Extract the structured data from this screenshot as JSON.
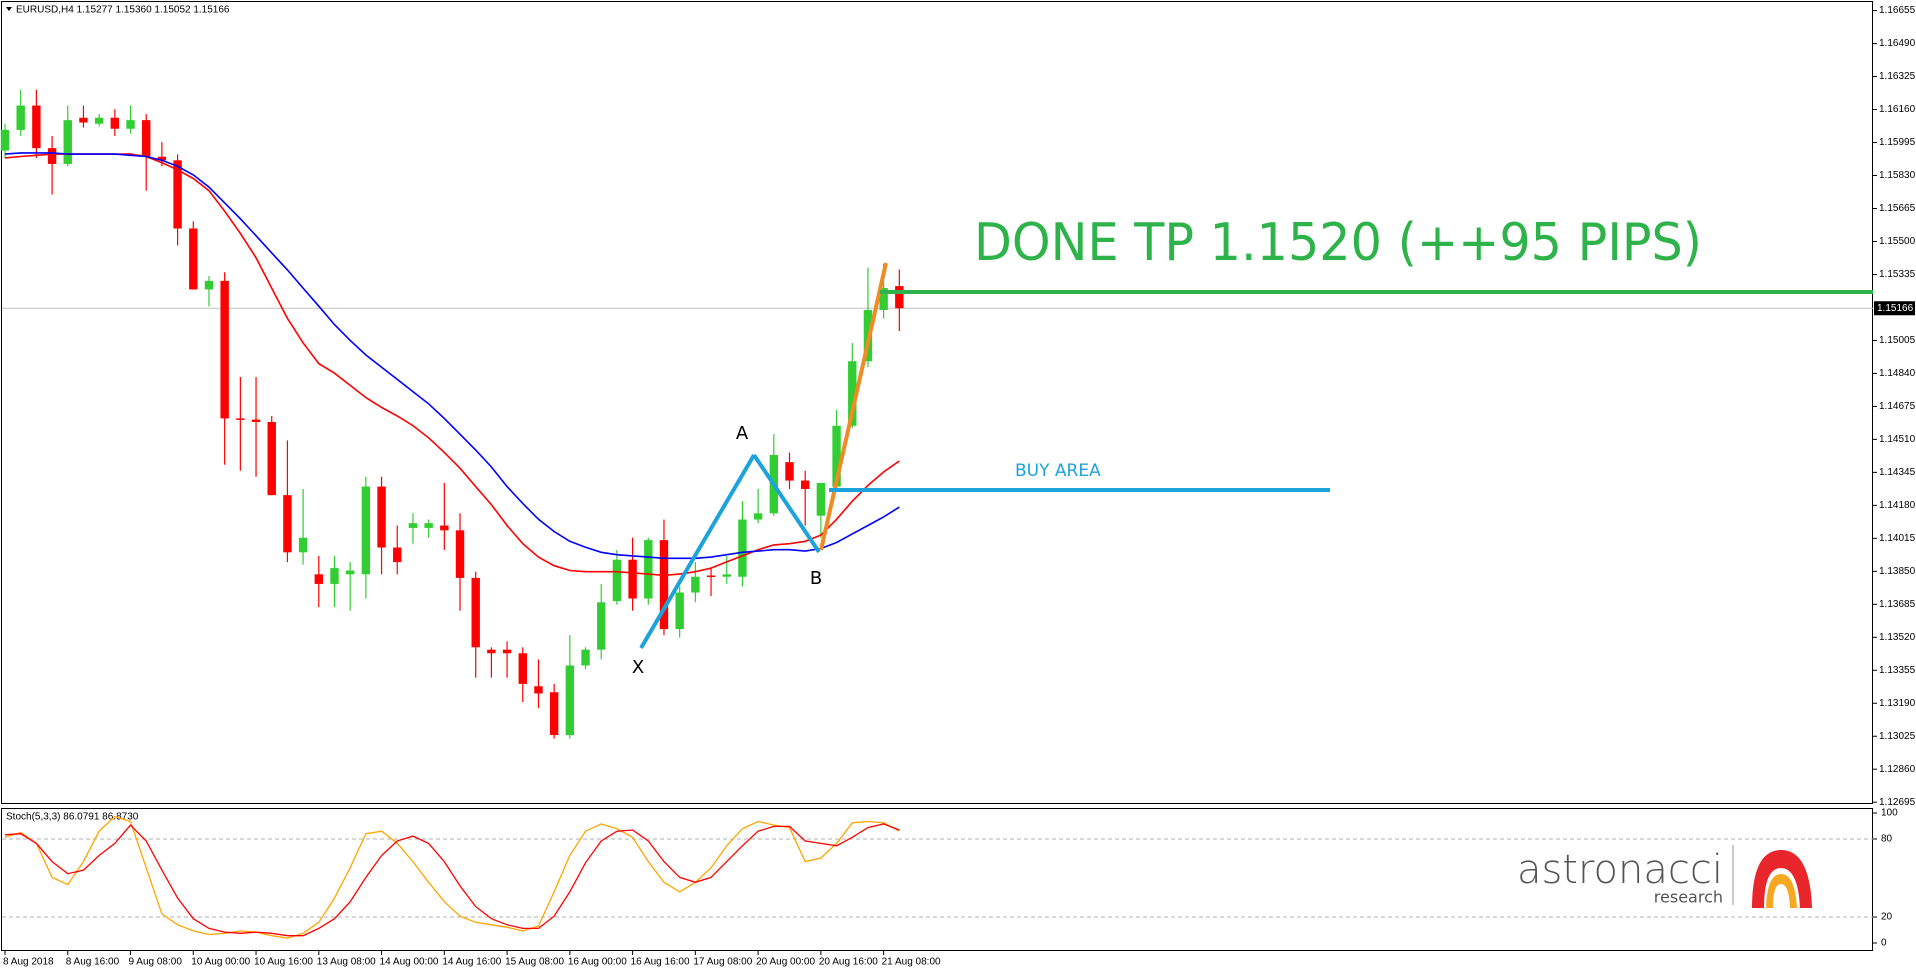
{
  "chart_data": [
    {
      "type": "candlestick",
      "title": "EURUSD,H4  1.15277 1.15360 1.15052 1.15166",
      "categories": [
        "8 Aug 2018",
        null,
        null,
        null,
        "8 Aug 16:00",
        null,
        null,
        null,
        "9 Aug 08:00",
        null,
        null,
        null,
        "10 Aug 00:00",
        null,
        null,
        null,
        "10 Aug 16:00",
        null,
        null,
        null,
        "13 Aug 08:00",
        null,
        null,
        null,
        "14 Aug 00:00",
        null,
        null,
        null,
        "14 Aug 16:00",
        null,
        null,
        null,
        "15 Aug 08:00",
        null,
        null,
        null,
        "16 Aug 00:00",
        null,
        null,
        null,
        "16 Aug 16:00",
        null,
        null,
        null,
        "17 Aug 08:00",
        null,
        null,
        null,
        "20 Aug 00:00",
        null,
        null,
        null,
        "20 Aug 16:00",
        null,
        null,
        null,
        "21 Aug 08:00",
        null
      ],
      "open": [
        1.15955,
        1.16058,
        1.1618,
        1.15967,
        1.15888,
        1.16119,
        1.16089,
        1.16119,
        1.16064,
        1.16107,
        1.15924,
        1.15906,
        1.15565,
        1.1526,
        1.15303,
        1.14615,
        1.14609,
        1.14597,
        1.14231,
        1.13945,
        1.13835,
        1.13787,
        1.13835,
        1.13835,
        1.14274,
        1.13969,
        1.14067,
        1.14067,
        1.14079,
        1.14055,
        1.13817,
        1.13458,
        1.13458,
        1.1344,
        1.13275,
        1.13245,
        1.13031,
        1.13379,
        1.13458,
        1.13701,
        1.13908,
        1.13714,
        1.14006,
        1.13561,
        1.13744,
        1.13829,
        1.13823,
        1.13823,
        1.14109,
        1.1414,
        1.14396,
        1.14304,
        1.14128,
        1.14274,
        1.14578,
        1.14901,
        1.15157,
        1.15277
      ],
      "high": [
        1.16089,
        1.16259,
        1.16259,
        1.16028,
        1.1618,
        1.1618,
        1.16137,
        1.16162,
        1.1618,
        1.16137,
        1.15997,
        1.15936,
        1.15601,
        1.15327,
        1.15346,
        1.14822,
        1.14822,
        1.14627,
        1.14505,
        1.14262,
        1.13927,
        1.13927,
        1.13896,
        1.14323,
        1.14323,
        1.14079,
        1.1414,
        1.14109,
        1.14292,
        1.1414,
        1.13848,
        1.1347,
        1.135,
        1.1347,
        1.13409,
        1.13287,
        1.13531,
        1.1347,
        1.13787,
        1.13957,
        1.14018,
        1.14018,
        1.14109,
        1.13774,
        1.13896,
        1.13866,
        1.13927,
        1.14201,
        1.14262,
        1.14536,
        1.14444,
        1.14353,
        1.14292,
        1.14658,
        1.14992,
        1.1537,
        1.15388,
        1.1536
      ],
      "low": [
        1.15918,
        1.16028,
        1.15918,
        1.15735,
        1.15876,
        1.1607,
        1.16076,
        1.16028,
        1.1604,
        1.15754,
        1.15876,
        1.1548,
        1.1526,
        1.15175,
        1.14383,
        1.14353,
        1.14323,
        1.14231,
        1.13896,
        1.13884,
        1.13671,
        1.13671,
        1.13653,
        1.13714,
        1.13835,
        1.13835,
        1.13988,
        1.14018,
        1.13957,
        1.13653,
        1.13318,
        1.13318,
        1.13318,
        1.13196,
        1.13165,
        1.13013,
        1.13013,
        1.1336,
        1.13409,
        1.13683,
        1.13653,
        1.13683,
        1.13531,
        1.13519,
        1.13695,
        1.13726,
        1.13787,
        1.13774,
        1.14091,
        1.14128,
        1.14262,
        1.14079,
        1.14018,
        1.14262,
        1.14566,
        1.14871,
        1.15114,
        1.15052
      ],
      "close": [
        1.16058,
        1.1618,
        1.15967,
        1.15888,
        1.16107,
        1.16095,
        1.16119,
        1.16064,
        1.16107,
        1.15924,
        1.15906,
        1.15565,
        1.1526,
        1.15303,
        1.14615,
        1.14609,
        1.14597,
        1.14231,
        1.13945,
        1.14018,
        1.13787,
        1.13866,
        1.13854,
        1.14274,
        1.13969,
        1.13896,
        1.14091,
        1.14091,
        1.14055,
        1.13817,
        1.1347,
        1.1344,
        1.1344,
        1.13287,
        1.13239,
        1.13031,
        1.13379,
        1.13458,
        1.13695,
        1.13908,
        1.13714,
        1.14006,
        1.13561,
        1.13744,
        1.13823,
        1.13823,
        1.13835,
        1.14109,
        1.1414,
        1.14432,
        1.14304,
        1.14262,
        1.14292,
        1.14578,
        1.14901,
        1.15157,
        1.15267,
        1.15166
      ],
      "up_color": "#32cd32",
      "down_color": "#ff0000",
      "lines": [
        {
          "color": "#ff0000",
          "values": [
            1.15918,
            1.15925,
            1.15931,
            1.15937,
            1.15937,
            1.15937,
            1.15937,
            1.15937,
            1.15937,
            1.15925,
            1.15894,
            1.15858,
            1.15815,
            1.15754,
            1.15651,
            1.15541,
            1.15419,
            1.15267,
            1.15115,
            1.14993,
            1.14889,
            1.14841,
            1.1478,
            1.14719,
            1.1467,
            1.14627,
            1.14579,
            1.14518,
            1.14445,
            1.14366,
            1.14274,
            1.14183,
            1.14079,
            1.13988,
            1.13921,
            1.13878,
            1.13854,
            1.13848,
            1.13848,
            1.13848,
            1.13842,
            1.13836,
            1.1383,
            1.13836,
            1.13848,
            1.13866,
            1.13897,
            1.13927,
            1.13958,
            1.13982,
            1.13988,
            1.14,
            1.14031,
            1.1411,
            1.14201,
            1.1428,
            1.14347,
            1.14402
          ]
        },
        {
          "color": "#0000ff",
          "values": [
            1.15937,
            1.15943,
            1.15943,
            1.15943,
            1.15937,
            1.15937,
            1.15937,
            1.15937,
            1.15931,
            1.15925,
            1.15906,
            1.15876,
            1.15833,
            1.15772,
            1.15693,
            1.15614,
            1.15529,
            1.15443,
            1.15358,
            1.15267,
            1.15176,
            1.15084,
            1.15005,
            1.14932,
            1.14871,
            1.1481,
            1.14749,
            1.14688,
            1.14615,
            1.14536,
            1.14457,
            1.14372,
            1.14274,
            1.14189,
            1.1411,
            1.14049,
            1.14,
            1.1397,
            1.13945,
            1.13933,
            1.13927,
            1.13921,
            1.13915,
            1.13915,
            1.13915,
            1.13921,
            1.13933,
            1.13945,
            1.13951,
            1.13958,
            1.13958,
            1.13951,
            1.13964,
            1.13994,
            1.14037,
            1.14079,
            1.14122,
            1.14171
          ]
        }
      ],
      "ylim": [
        1.12686,
        1.16698
      ],
      "yticks": [
        1.16655,
        {
          "value": 1.1649,
          "label": "1.16490"
        },
        1.16325,
        {
          "value": 1.1616,
          "label": "1.16160"
        },
        1.15995,
        {
          "value": 1.1583,
          "label": "1.15830"
        },
        1.15665,
        {
          "value": 1.155,
          "label": "1.15500"
        },
        1.15335,
        1.15005,
        {
          "value": 1.1484,
          "label": "1.14840"
        },
        1.14675,
        {
          "value": 1.1451,
          "label": "1.14510"
        },
        1.14345,
        {
          "value": 1.1418,
          "label": "1.14180"
        },
        1.14015,
        {
          "value": 1.1385,
          "label": "1.13850"
        },
        1.13685,
        {
          "value": 1.1352,
          "label": "1.13520"
        },
        1.13355,
        {
          "value": 1.1319,
          "label": "1.13190"
        },
        1.13025,
        {
          "value": 1.1286,
          "label": "1.12860"
        },
        1.12695
      ],
      "current_price": {
        "value": 1.15166,
        "label": "1.15166"
      },
      "annotations": {
        "target": "DONE TP 1.1520 (++95 PIPS)",
        "buy": "BUY AREA",
        "a": "A",
        "b": "B",
        "x": "X"
      }
    },
    {
      "type": "line",
      "title": "Stoch(5,3,3) 86.0791 86.8730",
      "series": [
        {
          "color": "#ffa500",
          "values": [
            81.3,
            85,
            76.6,
            50.5,
            44.9,
            62.6,
            86,
            97.2,
            93.5,
            57.9,
            22.4,
            14,
            9.3,
            6.5,
            7.5,
            9.3,
            8.4,
            5.6,
            3.7,
            7.5,
            15.9,
            34.6,
            57.9,
            84.1,
            86,
            76.6,
            62.6,
            46.7,
            31.8,
            20.6,
            15.9,
            14,
            12.1,
            9.3,
            13.1,
            39.3,
            67.3,
            86,
            91.6,
            87.9,
            81.3,
            62.6,
            46.7,
            39.3,
            46.7,
            57.9,
            74.8,
            87.9,
            93.5,
            90.7,
            88.8,
            62.6,
            65.4,
            76.6,
            92.5,
            93.5,
            92.5,
            86.1
          ]
        },
        {
          "color": "#ff0000",
          "values": [
            83.2,
            84.1,
            76.6,
            62.6,
            53.3,
            56.1,
            67.3,
            76.6,
            90.7,
            78.5,
            56.1,
            34.6,
            18.7,
            11.2,
            8.4,
            7.5,
            8.4,
            7.5,
            5.6,
            5.6,
            11.2,
            18.7,
            31.8,
            50.5,
            67.3,
            78.5,
            82.2,
            76.6,
            62.6,
            43.9,
            28,
            18.7,
            14,
            11.2,
            11.2,
            20.6,
            39.3,
            61.7,
            78.5,
            86,
            86.9,
            78.5,
            62.6,
            50.5,
            46.7,
            50.5,
            62.6,
            74.8,
            86,
            89.7,
            89.7,
            78.5,
            76.6,
            74.8,
            81.3,
            88.8,
            91.6,
            86.9
          ]
        }
      ],
      "ylim": [
        0,
        100
      ],
      "yticks": [
        0,
        20,
        80,
        100
      ]
    }
  ],
  "logo": {
    "name": "astronacci",
    "tagline": "research"
  }
}
